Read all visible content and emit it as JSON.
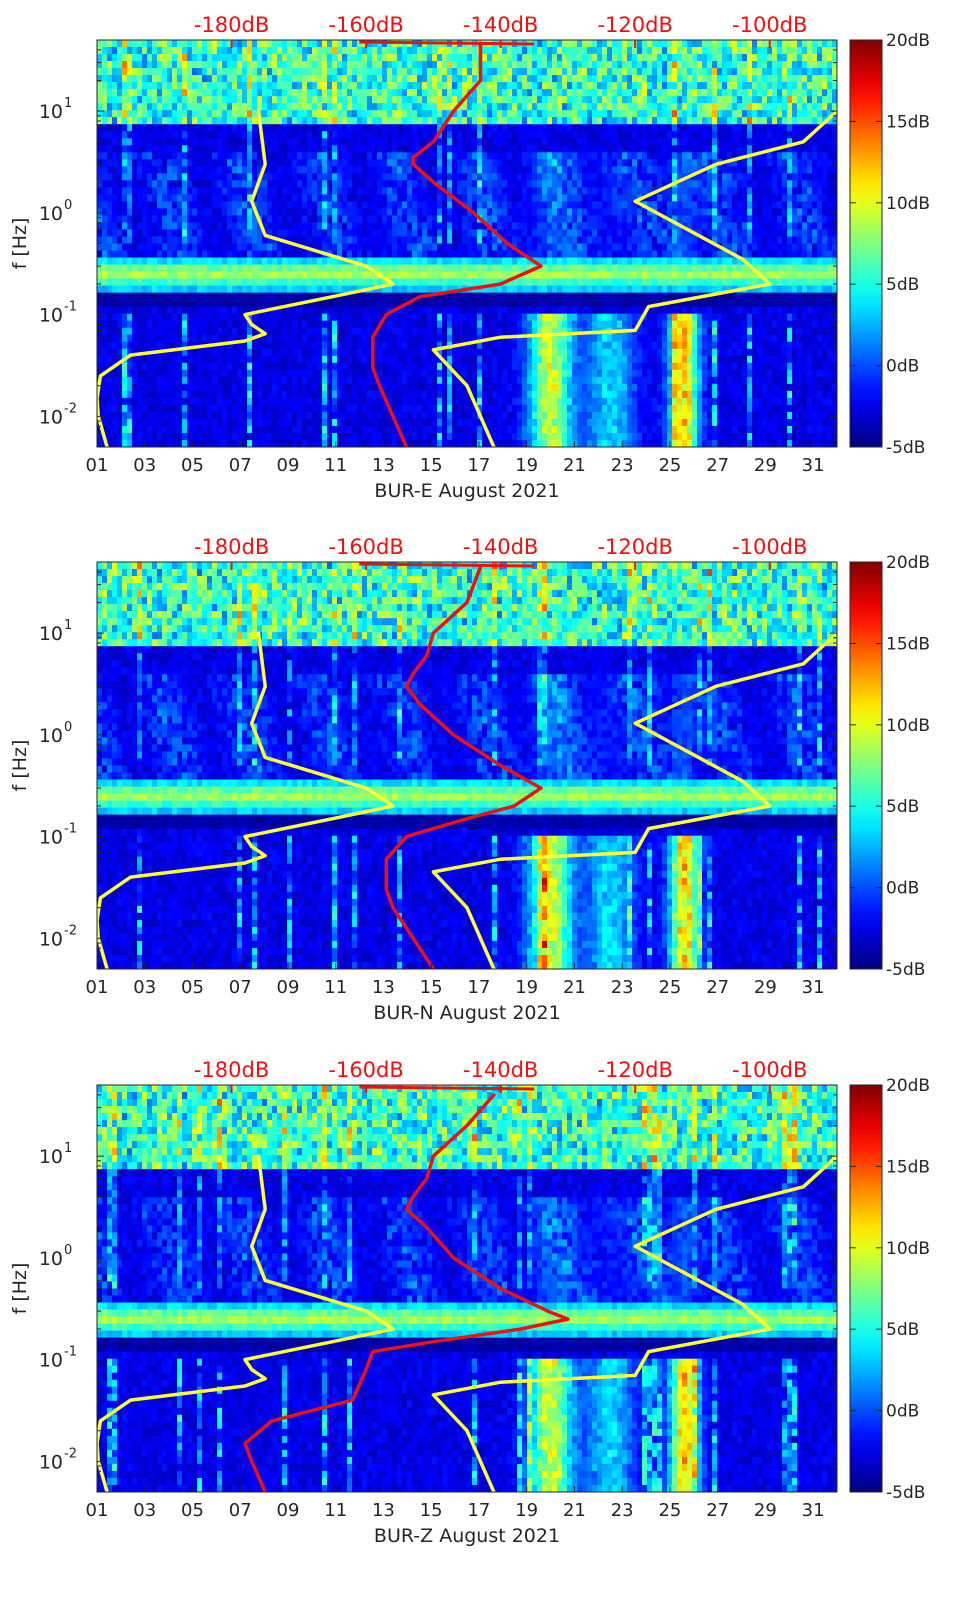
{
  "figure": {
    "panel_count": 3
  },
  "chart_data": [
    {
      "type": "heatmap",
      "title": "",
      "xlabel": "BUR-E August 2021",
      "ylabel": "f [Hz]",
      "x_ticks": [
        "01",
        "03",
        "05",
        "07",
        "09",
        "11",
        "13",
        "15",
        "17",
        "19",
        "21",
        "23",
        "25",
        "27",
        "29",
        "31"
      ],
      "x_range_days": [
        1,
        32
      ],
      "y_scale": "log",
      "y_range_hz": [
        0.005,
        50
      ],
      "y_ticks": [
        {
          "value": 0.01,
          "label": "10",
          "exp": "-2"
        },
        {
          "value": 0.1,
          "label": "10",
          "exp": "-1"
        },
        {
          "value": 1,
          "label": "10",
          "exp": "0"
        },
        {
          "value": 10,
          "label": "10",
          "exp": "1"
        }
      ],
      "colorbar": {
        "range_db": [
          -5,
          20
        ],
        "ticks": [
          "20dB",
          "15dB",
          "10dB",
          "5dB",
          "0dB",
          "-5dB"
        ],
        "colormap": "jet"
      },
      "top_ticks": [
        "-180dB",
        "-160dB",
        "-140dB",
        "-120dB",
        "-100dB"
      ],
      "top_axis_range_db": [
        -200,
        -90
      ],
      "series": [
        {
          "color": "#ffff33",
          "points": [
            [
              0.005,
              -198.5
            ],
            [
              0.01,
              -199.8
            ],
            [
              0.015,
              -200
            ],
            [
              0.025,
              -199.5
            ],
            [
              0.04,
              -195
            ],
            [
              0.055,
              -178
            ],
            [
              0.065,
              -175
            ],
            [
              0.08,
              -177
            ],
            [
              0.1,
              -178
            ],
            [
              0.15,
              -165
            ],
            [
              0.2,
              -156
            ],
            [
              0.3,
              -160
            ],
            [
              0.6,
              -175
            ],
            [
              1.3,
              -177
            ],
            [
              3,
              -175
            ],
            [
              10,
              -176
            ]
          ]
        },
        {
          "color": "#ffff33",
          "points": [
            [
              0.005,
              -141
            ],
            [
              0.02,
              -145
            ],
            [
              0.045,
              -150
            ],
            [
              0.06,
              -140
            ],
            [
              0.07,
              -120
            ],
            [
              0.12,
              -118
            ],
            [
              0.2,
              -100
            ],
            [
              0.35,
              -104
            ],
            [
              1.3,
              -120
            ],
            [
              3,
              -108
            ],
            [
              5,
              -95
            ],
            [
              10,
              -90
            ]
          ]
        },
        {
          "color": "#ee1111",
          "points": [
            [
              0.005,
              -154
            ],
            [
              0.01,
              -156
            ],
            [
              0.02,
              -158
            ],
            [
              0.03,
              -159
            ],
            [
              0.06,
              -159
            ],
            [
              0.1,
              -157
            ],
            [
              0.15,
              -152
            ],
            [
              0.2,
              -140
            ],
            [
              0.3,
              -134
            ],
            [
              0.5,
              -139
            ],
            [
              1,
              -144
            ],
            [
              2,
              -150
            ],
            [
              3,
              -153
            ],
            [
              3.5,
              -153
            ],
            [
              5,
              -150
            ],
            [
              10,
              -147
            ],
            [
              20,
              -143
            ],
            [
              45,
              -143
            ]
          ]
        }
      ]
    },
    {
      "type": "heatmap",
      "title": "",
      "xlabel": "BUR-N August 2021",
      "ylabel": "f [Hz]",
      "x_ticks": [
        "01",
        "03",
        "05",
        "07",
        "09",
        "11",
        "13",
        "15",
        "17",
        "19",
        "21",
        "23",
        "25",
        "27",
        "29",
        "31"
      ],
      "x_range_days": [
        1,
        32
      ],
      "y_scale": "log",
      "y_range_hz": [
        0.005,
        50
      ],
      "y_ticks": [
        {
          "value": 0.01,
          "label": "10",
          "exp": "-2"
        },
        {
          "value": 0.1,
          "label": "10",
          "exp": "-1"
        },
        {
          "value": 1,
          "label": "10",
          "exp": "0"
        },
        {
          "value": 10,
          "label": "10",
          "exp": "1"
        }
      ],
      "colorbar": {
        "range_db": [
          -5,
          20
        ],
        "ticks": [
          "20dB",
          "15dB",
          "10dB",
          "5dB",
          "0dB",
          "-5dB"
        ],
        "colormap": "jet"
      },
      "top_ticks": [
        "-180dB",
        "-160dB",
        "-140dB",
        "-120dB",
        "-100dB"
      ],
      "top_axis_range_db": [
        -200,
        -90
      ],
      "series": [
        {
          "color": "#ffff33",
          "points": [
            [
              0.005,
              -198.5
            ],
            [
              0.01,
              -199.8
            ],
            [
              0.015,
              -200
            ],
            [
              0.025,
              -199.5
            ],
            [
              0.04,
              -195
            ],
            [
              0.055,
              -178
            ],
            [
              0.065,
              -175
            ],
            [
              0.08,
              -177
            ],
            [
              0.1,
              -178
            ],
            [
              0.15,
              -165
            ],
            [
              0.2,
              -156
            ],
            [
              0.3,
              -160
            ],
            [
              0.6,
              -175
            ],
            [
              1.3,
              -177
            ],
            [
              3,
              -175
            ],
            [
              10,
              -176
            ]
          ]
        },
        {
          "color": "#ffff33",
          "points": [
            [
              0.005,
              -141
            ],
            [
              0.02,
              -145
            ],
            [
              0.045,
              -150
            ],
            [
              0.06,
              -140
            ],
            [
              0.07,
              -120
            ],
            [
              0.12,
              -118
            ],
            [
              0.2,
              -100
            ],
            [
              0.35,
              -104
            ],
            [
              1.3,
              -120
            ],
            [
              3,
              -108
            ],
            [
              5,
              -95
            ],
            [
              10,
              -90
            ]
          ]
        },
        {
          "color": "#ee1111",
          "points": [
            [
              0.005,
              -150
            ],
            [
              0.01,
              -153
            ],
            [
              0.02,
              -156
            ],
            [
              0.03,
              -157
            ],
            [
              0.06,
              -157
            ],
            [
              0.1,
              -154
            ],
            [
              0.15,
              -145
            ],
            [
              0.2,
              -138
            ],
            [
              0.3,
              -134
            ],
            [
              0.5,
              -140
            ],
            [
              1,
              -147
            ],
            [
              2,
              -152
            ],
            [
              3,
              -154
            ],
            [
              4,
              -153
            ],
            [
              6,
              -151
            ],
            [
              10,
              -150
            ],
            [
              20,
              -145
            ],
            [
              45,
              -143
            ]
          ]
        }
      ]
    },
    {
      "type": "heatmap",
      "title": "",
      "xlabel": "BUR-Z August 2021",
      "ylabel": "f [Hz]",
      "x_ticks": [
        "01",
        "03",
        "05",
        "07",
        "09",
        "11",
        "13",
        "15",
        "17",
        "19",
        "21",
        "23",
        "25",
        "27",
        "29",
        "31"
      ],
      "x_range_days": [
        1,
        32
      ],
      "y_scale": "log",
      "y_range_hz": [
        0.005,
        50
      ],
      "y_ticks": [
        {
          "value": 0.01,
          "label": "10",
          "exp": "-2"
        },
        {
          "value": 0.1,
          "label": "10",
          "exp": "-1"
        },
        {
          "value": 1,
          "label": "10",
          "exp": "0"
        },
        {
          "value": 10,
          "label": "10",
          "exp": "1"
        }
      ],
      "colorbar": {
        "range_db": [
          -5,
          20
        ],
        "ticks": [
          "20dB",
          "15dB",
          "10dB",
          "5dB",
          "0dB",
          "-5dB"
        ],
        "colormap": "jet"
      },
      "top_ticks": [
        "-180dB",
        "-160dB",
        "-140dB",
        "-120dB",
        "-100dB"
      ],
      "top_axis_range_db": [
        -200,
        -90
      ],
      "series": [
        {
          "color": "#ffff33",
          "points": [
            [
              0.005,
              -198.5
            ],
            [
              0.01,
              -199.8
            ],
            [
              0.015,
              -200
            ],
            [
              0.025,
              -199.5
            ],
            [
              0.04,
              -195
            ],
            [
              0.055,
              -178
            ],
            [
              0.065,
              -175
            ],
            [
              0.08,
              -177
            ],
            [
              0.1,
              -178
            ],
            [
              0.15,
              -165
            ],
            [
              0.2,
              -156
            ],
            [
              0.3,
              -160
            ],
            [
              0.6,
              -175
            ],
            [
              1.3,
              -177
            ],
            [
              3,
              -175
            ],
            [
              10,
              -176
            ]
          ]
        },
        {
          "color": "#ffff33",
          "points": [
            [
              0.005,
              -141
            ],
            [
              0.02,
              -145
            ],
            [
              0.045,
              -150
            ],
            [
              0.06,
              -140
            ],
            [
              0.07,
              -120
            ],
            [
              0.12,
              -118
            ],
            [
              0.2,
              -100
            ],
            [
              0.35,
              -104
            ],
            [
              1.3,
              -120
            ],
            [
              3,
              -108
            ],
            [
              5,
              -95
            ],
            [
              10,
              -90
            ]
          ]
        },
        {
          "color": "#ee1111",
          "points": [
            [
              0.005,
              -175
            ],
            [
              0.01,
              -177
            ],
            [
              0.015,
              -178
            ],
            [
              0.025,
              -174
            ],
            [
              0.04,
              -162
            ],
            [
              0.08,
              -160
            ],
            [
              0.12,
              -159
            ],
            [
              0.15,
              -150
            ],
            [
              0.2,
              -137
            ],
            [
              0.25,
              -130
            ],
            [
              0.3,
              -133
            ],
            [
              0.5,
              -140
            ],
            [
              1,
              -147
            ],
            [
              2,
              -151
            ],
            [
              3,
              -154
            ],
            [
              4,
              -153
            ],
            [
              6,
              -151
            ],
            [
              10,
              -150
            ],
            [
              20,
              -145
            ],
            [
              40,
              -141
            ]
          ]
        }
      ]
    }
  ]
}
